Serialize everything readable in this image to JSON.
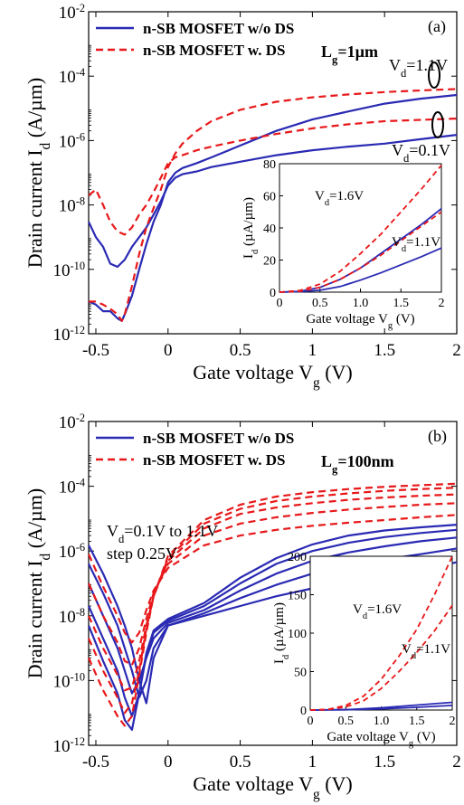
{
  "colors": {
    "blue": "#2a2ab4",
    "red": "#e8181a",
    "axis": "#000000"
  },
  "chart_data": [
    {
      "type": "line",
      "panel_label": "(a)",
      "annotation": "L_g=1µm",
      "xlabel": "Gate voltage V_g (V)",
      "ylabel": "Drain current I_d (A/µm)",
      "xlim": [
        -0.55,
        2.0
      ],
      "ylim": [
        1e-12,
        0.01
      ],
      "yscale": "log",
      "xticks": [
        -0.5,
        0,
        0.5,
        1,
        1.5,
        2
      ],
      "xticklabels": [
        "-0.5",
        "0",
        "0.5",
        "1",
        "1.5",
        "2"
      ],
      "yticks": [
        1e-12,
        1e-10,
        1e-08,
        1e-06,
        0.0001,
        0.01
      ],
      "legend": {
        "placement": "top-left",
        "entries": [
          "n-SB MOSFET w/o DS",
          "n-SB MOSFET w. DS"
        ]
      },
      "curve_labels": [
        "V_d=1.1V",
        "V_d=0.1V"
      ],
      "series": [
        {
          "name": "n-SB MOSFET w/o DS",
          "style": "solid",
          "color": "#2a2ab4",
          "x": [
            -0.55,
            -0.5,
            -0.45,
            -0.4,
            -0.35,
            -0.3,
            -0.25,
            -0.2,
            -0.15,
            -0.1,
            -0.05,
            0,
            0.05,
            0.1,
            0.2,
            0.3,
            0.5,
            0.75,
            1,
            1.25,
            1.5,
            1.75,
            2
          ],
          "y": [
            3e-09,
            1e-09,
            5e-10,
            1.5e-10,
            1.2e-10,
            2e-10,
            5e-10,
            1e-09,
            2e-09,
            5e-09,
            1.3e-08,
            4e-08,
            7e-08,
            9e-08,
            1.1e-07,
            1.5e-07,
            2.2e-07,
            3.5e-07,
            5e-07,
            6.5e-07,
            8e-07,
            1.1e-06,
            1.5e-06
          ]
        },
        {
          "name": "n-SB MOSFET w/o DS",
          "style": "solid",
          "color": "#2a2ab4",
          "x": [
            -0.55,
            -0.5,
            -0.45,
            -0.4,
            -0.35,
            -0.32,
            -0.3,
            -0.25,
            -0.2,
            -0.15,
            -0.1,
            -0.05,
            0,
            0.05,
            0.1,
            0.2,
            0.3,
            0.5,
            0.75,
            1,
            1.25,
            1.5,
            1.75,
            2
          ],
          "y": [
            1e-11,
            8e-12,
            5e-12,
            5e-12,
            3e-12,
            2.5e-12,
            4e-12,
            1.5e-11,
            1e-10,
            6e-10,
            3e-09,
            1e-08,
            5e-08,
            1e-07,
            1.4e-07,
            2e-07,
            3e-07,
            7e-07,
            2e-06,
            4.5e-06,
            8e-06,
            1.4e-05,
            2e-05,
            2.6e-05
          ]
        },
        {
          "name": "n-SB MOSFET w. DS",
          "style": "dashed",
          "color": "#e8181a",
          "x": [
            -0.55,
            -0.5,
            -0.45,
            -0.4,
            -0.35,
            -0.3,
            -0.25,
            -0.2,
            -0.15,
            -0.1,
            -0.05,
            0,
            0.05,
            0.1,
            0.2,
            0.3,
            0.5,
            0.75,
            1,
            1.25,
            1.5,
            1.75,
            2
          ],
          "y": [
            2e-08,
            3e-08,
            1e-08,
            3e-09,
            1.5e-09,
            1.2e-09,
            2e-09,
            5e-09,
            1e-08,
            2.5e-08,
            7e-08,
            2e-07,
            3e-07,
            3.5e-07,
            5e-07,
            6.5e-07,
            1e-06,
            1.6e-06,
            2.4e-06,
            3.2e-06,
            4e-06,
            4.4e-06,
            4.8e-06
          ]
        },
        {
          "name": "n-SB MOSFET w. DS",
          "style": "dashed",
          "color": "#e8181a",
          "x": [
            -0.55,
            -0.5,
            -0.45,
            -0.4,
            -0.35,
            -0.32,
            -0.3,
            -0.25,
            -0.2,
            -0.15,
            -0.1,
            -0.05,
            0,
            0.05,
            0.1,
            0.2,
            0.3,
            0.5,
            0.75,
            1,
            1.25,
            1.5,
            1.75,
            2
          ],
          "y": [
            1e-11,
            1e-11,
            8e-12,
            6e-12,
            4e-12,
            2.5e-12,
            4e-12,
            3e-11,
            3e-10,
            2e-09,
            8e-09,
            3e-08,
            1.5e-07,
            4e-07,
            8e-07,
            2e-06,
            4e-06,
            9e-06,
            1.6e-05,
            2.2e-05,
            2.7e-05,
            3.2e-05,
            3.6e-05,
            4e-05
          ]
        }
      ],
      "inset": {
        "type": "line",
        "xlabel": "Gate voltage V_g (V)",
        "ylabel": "I_d (µA/µm)",
        "xlim": [
          0,
          2
        ],
        "ylim": [
          0,
          80
        ],
        "xticks": [
          0,
          0.5,
          1,
          1.5,
          2
        ],
        "xticklabels": [
          "0",
          "0.5",
          "1.0",
          "1.5",
          "2"
        ],
        "yticks": [
          0,
          20,
          40,
          60,
          80
        ],
        "yticklabels": [
          "0",
          "20",
          "40",
          "60",
          "80"
        ],
        "curve_labels": [
          "V_d=1.6V",
          "V_d=1.1V"
        ],
        "series": [
          {
            "name": "n-SB MOSFET w/o DS",
            "style": "solid",
            "color": "#2a2ab4",
            "x": [
              0,
              0.25,
              0.5,
              0.75,
              1,
              1.25,
              1.5,
              1.75,
              2
            ],
            "y": [
              0,
              0.3,
              1.2,
              3.5,
              7.5,
              12,
              17,
              22,
              27.5
            ]
          },
          {
            "name": "n-SB MOSFET w/o DS",
            "style": "solid",
            "color": "#2a2ab4",
            "x": [
              0,
              0.25,
              0.5,
              0.75,
              1,
              1.25,
              1.5,
              1.75,
              2
            ],
            "y": [
              0,
              0.5,
              3,
              8,
              15,
              24,
              33,
              42,
              52
            ]
          },
          {
            "name": "n-SB MOSFET w. DS",
            "style": "dashed",
            "color": "#e8181a",
            "x": [
              0,
              0.25,
              0.5,
              0.75,
              1,
              1.25,
              1.5,
              1.75,
              2
            ],
            "y": [
              0,
              0.5,
              3,
              8,
              15,
              23,
              32,
              41,
              50
            ]
          },
          {
            "name": "n-SB MOSFET w. DS",
            "style": "dashed",
            "color": "#e8181a",
            "x": [
              0,
              0.25,
              0.5,
              0.75,
              1,
              1.25,
              1.5,
              1.75,
              2
            ],
            "y": [
              0,
              1,
              5,
              13,
              24,
              36,
              50,
              64,
              79
            ]
          }
        ]
      }
    },
    {
      "type": "line",
      "panel_label": "(b)",
      "annotation": "L_g=100nm",
      "note_lines": [
        "V_d=0.1V to 1.1V",
        "step 0.25V"
      ],
      "xlabel": "Gate voltage V_g (V)",
      "ylabel": "Drain current I_d (A/µm)",
      "xlim": [
        -0.55,
        2.0
      ],
      "ylim": [
        1e-12,
        0.01
      ],
      "yscale": "log",
      "xticks": [
        -0.5,
        0,
        0.5,
        1,
        1.5,
        2
      ],
      "xticklabels": [
        "-0.5",
        "0",
        "0.5",
        "1",
        "1.5",
        "2"
      ],
      "yticks": [
        1e-12,
        1e-10,
        1e-08,
        1e-06,
        0.0001,
        0.01
      ],
      "legend": {
        "placement": "top-left",
        "entries": [
          "n-SB MOSFET w/o DS",
          "n-SB MOSFET w. DS"
        ]
      },
      "series": [
        {
          "name": "n-SB MOSFET w/o DS",
          "style": "solid",
          "color": "#2a2ab4",
          "x": [
            -0.55,
            -0.45,
            -0.35,
            -0.3,
            -0.25,
            -0.2,
            -0.15,
            -0.1,
            0,
            0.25,
            0.5,
            0.75,
            1,
            1.25,
            1.5,
            1.75,
            2
          ],
          "y": [
            1.5e-06,
            2e-07,
            2e-08,
            5e-09,
            1e-09,
            1e-10,
            2e-11,
            5e-10,
            5e-09,
            1e-08,
            2e-08,
            4e-08,
            7e-08,
            1e-07,
            1.6e-07,
            2.5e-07,
            4.5e-07
          ]
        },
        {
          "name": "n-SB MOSFET w/o DS",
          "style": "solid",
          "color": "#2a2ab4",
          "x": [
            -0.55,
            -0.45,
            -0.35,
            -0.3,
            -0.25,
            -0.2,
            -0.15,
            -0.1,
            0,
            0.25,
            0.5,
            0.75,
            1,
            1.25,
            1.5,
            1.75,
            2
          ],
          "y": [
            4e-07,
            5e-08,
            5e-09,
            1e-09,
            2e-10,
            3e-11,
            1e-10,
            1e-09,
            5e-09,
            1.2e-08,
            3.5e-08,
            9e-08,
            2e-07,
            3.5e-07,
            5.5e-07,
            8e-07,
            1.2e-06
          ]
        },
        {
          "name": "n-SB MOSFET w/o DS",
          "style": "solid",
          "color": "#2a2ab4",
          "x": [
            -0.55,
            -0.45,
            -0.35,
            -0.3,
            -0.25,
            -0.2,
            -0.15,
            -0.1,
            0,
            0.25,
            0.5,
            0.75,
            1,
            1.25,
            1.5,
            1.75,
            2
          ],
          "y": [
            1e-07,
            1e-08,
            1e-09,
            2e-10,
            4e-11,
            1e-10,
            5e-10,
            2e-09,
            6e-09,
            1.5e-08,
            6e-08,
            2e-07,
            5e-07,
            9e-07,
            1.4e-06,
            2e-06,
            2.6e-06
          ]
        },
        {
          "name": "n-SB MOSFET w/o DS",
          "style": "solid",
          "color": "#2a2ab4",
          "x": [
            -0.55,
            -0.45,
            -0.35,
            -0.3,
            -0.25,
            -0.2,
            -0.15,
            -0.1,
            0,
            0.25,
            0.5,
            0.75,
            1,
            1.25,
            1.5,
            1.75,
            2
          ],
          "y": [
            2e-08,
            2e-09,
            2e-10,
            3e-11,
            8e-12,
            4e-11,
            6e-10,
            3e-09,
            7e-09,
            2e-08,
            1e-07,
            4e-07,
            1e-06,
            1.8e-06,
            2.7e-06,
            3.6e-06,
            4.5e-06
          ]
        },
        {
          "name": "n-SB MOSFET w/o DS",
          "style": "solid",
          "color": "#2a2ab4",
          "x": [
            -0.55,
            -0.45,
            -0.35,
            -0.3,
            -0.25,
            -0.2,
            -0.15,
            -0.1,
            0,
            0.25,
            0.5,
            0.75,
            1,
            1.25,
            1.5,
            1.75,
            2
          ],
          "y": [
            5e-09,
            4e-10,
            4e-11,
            6e-12,
            3e-12,
            4e-11,
            7e-10,
            3.5e-09,
            8e-09,
            2.5e-08,
            1.5e-07,
            6e-07,
            1.6e-06,
            3e-06,
            4.3e-06,
            5.4e-06,
            6.5e-06
          ]
        },
        {
          "name": "n-SB MOSFET w. DS",
          "style": "dashed",
          "color": "#e8181a",
          "x": [
            -0.55,
            -0.45,
            -0.35,
            -0.3,
            -0.25,
            -0.2,
            -0.15,
            -0.1,
            0,
            0.25,
            0.5,
            0.75,
            1,
            1.25,
            1.5,
            1.75,
            2
          ],
          "y": [
            8e-07,
            8e-08,
            1e-08,
            3e-09,
            1.5e-09,
            3e-09,
            1.5e-08,
            6e-08,
            3e-07,
            1.5e-06,
            3e-06,
            4.5e-06,
            6e-06,
            7.5e-06,
            9e-06,
            1.1e-05,
            1.3e-05
          ]
        },
        {
          "name": "n-SB MOSFET w. DS",
          "style": "dashed",
          "color": "#e8181a",
          "x": [
            -0.55,
            -0.45,
            -0.35,
            -0.3,
            -0.25,
            -0.2,
            -0.15,
            -0.1,
            0,
            0.25,
            0.5,
            0.75,
            1,
            1.25,
            1.5,
            1.75,
            2
          ],
          "y": [
            1e-07,
            1e-08,
            1.5e-09,
            4e-10,
            3e-10,
            1e-09,
            8e-09,
            5e-08,
            4e-07,
            3e-06,
            7e-06,
            1.1e-05,
            1.5e-05,
            1.9e-05,
            2.3e-05,
            2.7e-05,
            3e-05
          ]
        },
        {
          "name": "n-SB MOSFET w. DS",
          "style": "dashed",
          "color": "#e8181a",
          "x": [
            -0.55,
            -0.45,
            -0.35,
            -0.3,
            -0.25,
            -0.2,
            -0.15,
            -0.1,
            0,
            0.25,
            0.5,
            0.75,
            1,
            1.25,
            1.5,
            1.75,
            2
          ],
          "y": [
            1e-08,
            1e-09,
            1.5e-10,
            5e-11,
            6e-11,
            4e-10,
            5e-09,
            4e-08,
            5e-07,
            5e-06,
            1.4e-05,
            2.2e-05,
            3e-05,
            3.8e-05,
            4.5e-05,
            5.1e-05,
            5.6e-05
          ]
        },
        {
          "name": "n-SB MOSFET w. DS",
          "style": "dashed",
          "color": "#e8181a",
          "x": [
            -0.55,
            -0.45,
            -0.35,
            -0.3,
            -0.25,
            -0.2,
            -0.15,
            -0.1,
            0,
            0.25,
            0.5,
            0.75,
            1,
            1.25,
            1.5,
            1.75,
            2
          ],
          "y": [
            2e-09,
            2e-10,
            3e-11,
            1e-11,
            2e-11,
            2e-10,
            4e-09,
            4e-08,
            6e-07,
            7e-06,
            2e-05,
            3.5e-05,
            4.8e-05,
            6e-05,
            7.2e-05,
            8.2e-05,
            9e-05
          ]
        },
        {
          "name": "n-SB MOSFET w. DS",
          "style": "dashed",
          "color": "#e8181a",
          "x": [
            -0.55,
            -0.45,
            -0.35,
            -0.3,
            -0.25,
            -0.2,
            -0.15,
            -0.1,
            0,
            0.25,
            0.5,
            0.75,
            1,
            1.25,
            1.5,
            1.75,
            2
          ],
          "y": [
            5e-10,
            5e-11,
            8e-12,
            4e-12,
            8e-12,
            1.5e-10,
            3e-09,
            4e-08,
            7e-07,
            9e-06,
            2.7e-05,
            4.8e-05,
            6.6e-05,
            8.2e-05,
            9.6e-05,
            0.000108,
            0.00012
          ]
        }
      ],
      "inset": {
        "type": "line",
        "xlabel": "Gate voltage V_g (V)",
        "ylabel": "I_d (µA/µm)",
        "xlim": [
          0,
          2
        ],
        "ylim": [
          0,
          200
        ],
        "xticks": [
          0,
          0.5,
          1,
          1.5,
          2
        ],
        "xticklabels": [
          "0",
          "0.5",
          "1.0",
          "1.5",
          "2"
        ],
        "yticks": [
          0,
          50,
          100,
          150,
          200
        ],
        "yticklabels": [
          "0",
          "50",
          "100",
          "150",
          "200"
        ],
        "curve_labels": [
          "V_d=1.6V",
          "V_d=1.1V"
        ],
        "series": [
          {
            "name": "n-SB MOSFET w/o DS",
            "style": "solid",
            "color": "#2a2ab4",
            "x": [
              0,
              0.5,
              1,
              1.5,
              2
            ],
            "y": [
              0,
              0.3,
              1.5,
              3.5,
              6
            ]
          },
          {
            "name": "n-SB MOSFET w/o DS",
            "style": "solid",
            "color": "#2a2ab4",
            "x": [
              0,
              0.5,
              1,
              1.5,
              2
            ],
            "y": [
              0,
              0.5,
              3,
              6.5,
              10
            ]
          },
          {
            "name": "n-SB MOSFET w. DS",
            "style": "dashed",
            "color": "#e8181a",
            "x": [
              0,
              0.25,
              0.5,
              0.75,
              1,
              1.25,
              1.5,
              1.75,
              2
            ],
            "y": [
              0,
              0.5,
              4,
              12,
              28,
              50,
              75,
              103,
              136
            ]
          },
          {
            "name": "n-SB MOSFET w. DS",
            "style": "dashed",
            "color": "#e8181a",
            "x": [
              0,
              0.25,
              0.5,
              0.75,
              1,
              1.25,
              1.5,
              1.75,
              2
            ],
            "y": [
              0,
              0.8,
              6,
              18,
              40,
              70,
              105,
              150,
              200
            ]
          }
        ]
      }
    }
  ]
}
